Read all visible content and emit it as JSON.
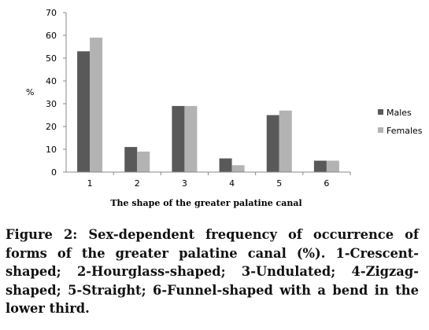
{
  "chart_data": {
    "type": "bar",
    "categories": [
      "1",
      "2",
      "3",
      "4",
      "5",
      "6"
    ],
    "series": [
      {
        "name": "Males",
        "values": [
          53,
          11,
          29,
          6,
          25,
          5
        ],
        "color": "#595959"
      },
      {
        "name": "Females",
        "values": [
          59,
          9,
          29,
          3,
          27,
          5
        ],
        "color": "#b3b3b3"
      }
    ],
    "title": "",
    "xlabel": "The shape of the greater palatine canal",
    "ylabel": "%",
    "ylim": [
      0,
      70
    ],
    "yticks": [
      "0",
      "10",
      "20",
      "30",
      "40",
      "50",
      "60",
      "70"
    ],
    "grid": false,
    "legend_position": "right"
  },
  "caption": "Figure 2: Sex-dependent frequency of occurrence of forms of the greater palatine canal (%). 1-Crescent-shaped; 2-Hourglass-shaped; 3-Undulated; 4-Zigzag-shaped; 5-Straight; 6-Funnel-shaped with a bend in the lower third."
}
